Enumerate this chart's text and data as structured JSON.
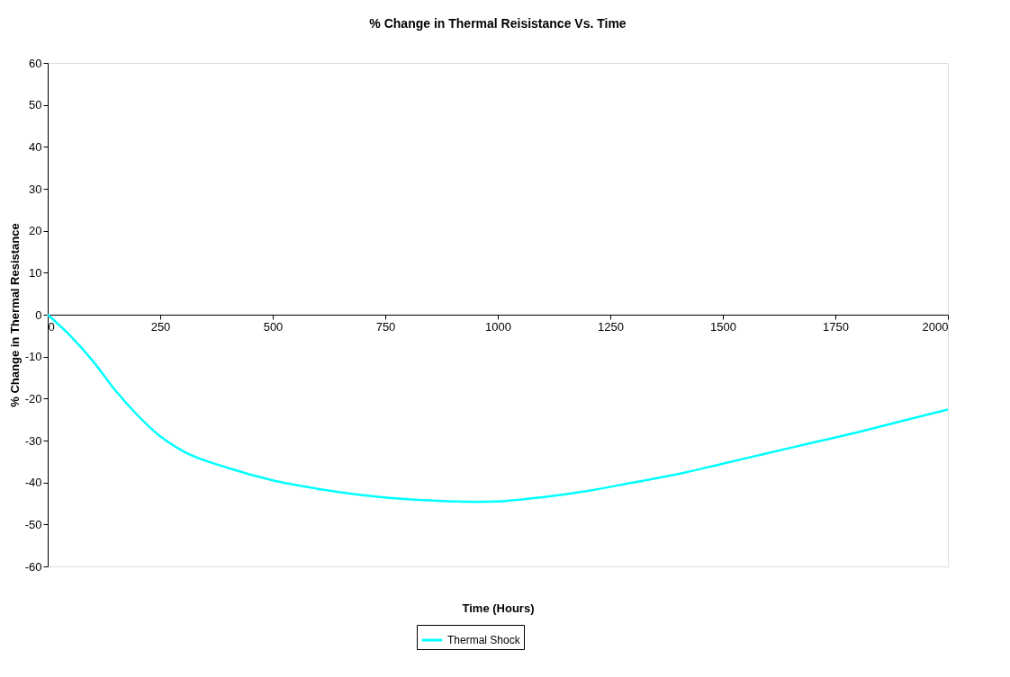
{
  "chart_data": {
    "type": "line",
    "title": "% Change in Thermal Reisistance Vs. Time",
    "xlabel": "Time (Hours)",
    "ylabel": "% Change in Thermal Resistance",
    "x": [
      0,
      50,
      100,
      150,
      200,
      250,
      300,
      400,
      500,
      600,
      700,
      800,
      900,
      950,
      1000,
      1100,
      1200,
      1300,
      1400,
      1500,
      1600,
      1700,
      1800,
      1900,
      2000
    ],
    "series": [
      {
        "name": "Thermal Shock",
        "color": "#00ffff",
        "values": [
          0,
          -5,
          -11,
          -18,
          -24,
          -29,
          -32.5,
          -36.5,
          -39.5,
          -41.5,
          -43,
          -44,
          -44.5,
          -44.6,
          -44.5,
          -43.5,
          -42,
          -40,
          -38,
          -35.5,
          -33,
          -30.5,
          -28,
          -25.3,
          -22.6
        ]
      }
    ],
    "xlim": [
      0,
      2000
    ],
    "xticks": [
      0,
      250,
      500,
      750,
      1000,
      1250,
      1500,
      1750,
      2000
    ],
    "ylim": [
      -60,
      60
    ],
    "yticks": [
      -60,
      -50,
      -40,
      -30,
      -20,
      -10,
      0,
      10,
      20,
      30,
      40,
      50,
      60
    ],
    "grid": false,
    "legend": "bottom",
    "marker": "none",
    "line_style": "solid"
  }
}
